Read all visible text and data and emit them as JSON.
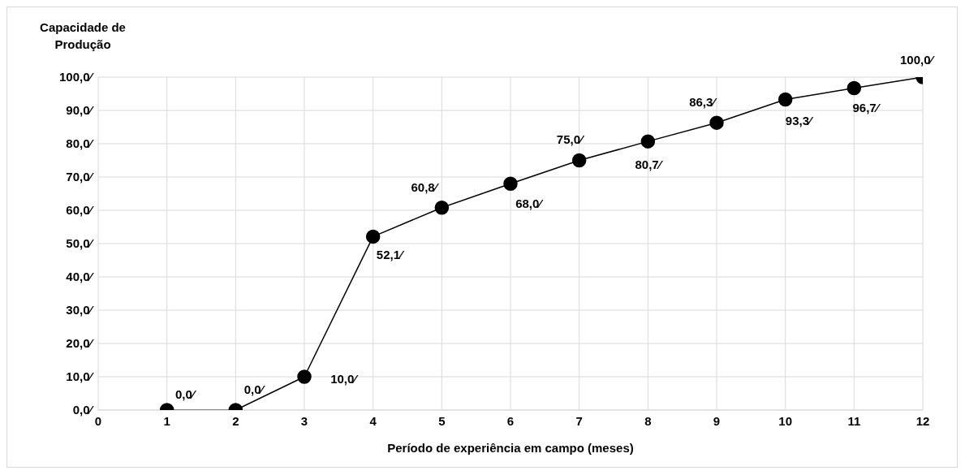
{
  "chart_data": {
    "type": "line",
    "ylabel": "Capacidade de Produção",
    "xlabel": "Período de experiência em campo (meses)",
    "x": [
      1,
      2,
      3,
      4,
      5,
      6,
      7,
      8,
      9,
      10,
      11,
      12
    ],
    "series": [
      {
        "color": "#000000",
        "values": [
          0,
          0,
          10,
          52.1,
          60.8,
          68,
          75,
          80.7,
          86.3,
          93.3,
          96.7,
          100
        ],
        "value_labels": [
          "0,0⁄",
          "0,0⁄",
          "10,0⁄",
          "52,1⁄",
          "60,8⁄",
          "68,0⁄",
          "75,0⁄",
          "80,7⁄",
          "86,3⁄",
          "93,3⁄",
          "96,7⁄",
          "100,0⁄"
        ]
      }
    ],
    "xlim": [
      0,
      12
    ],
    "xticks": [
      0,
      1,
      2,
      3,
      4,
      5,
      6,
      7,
      8,
      9,
      10,
      11,
      12
    ],
    "ylim": [
      0,
      100
    ],
    "yticks": [
      {
        "value": 0,
        "label": "0,0⁄"
      },
      {
        "value": 10,
        "label": "10,0⁄"
      },
      {
        "value": 20,
        "label": "20,0⁄"
      },
      {
        "value": 30,
        "label": "30,0⁄"
      },
      {
        "value": 40,
        "label": "40,0⁄"
      },
      {
        "value": 50,
        "label": "50,0⁄"
      },
      {
        "value": 60,
        "label": "60,0⁄"
      },
      {
        "value": 70,
        "label": "70,0⁄"
      },
      {
        "value": 80,
        "label": "80,0⁄"
      },
      {
        "value": 90,
        "label": "90,0⁄"
      },
      {
        "value": 100,
        "label": "100,0⁄"
      }
    ],
    "grid": true,
    "marker": "circle",
    "line_style": "solid",
    "legend": false
  }
}
